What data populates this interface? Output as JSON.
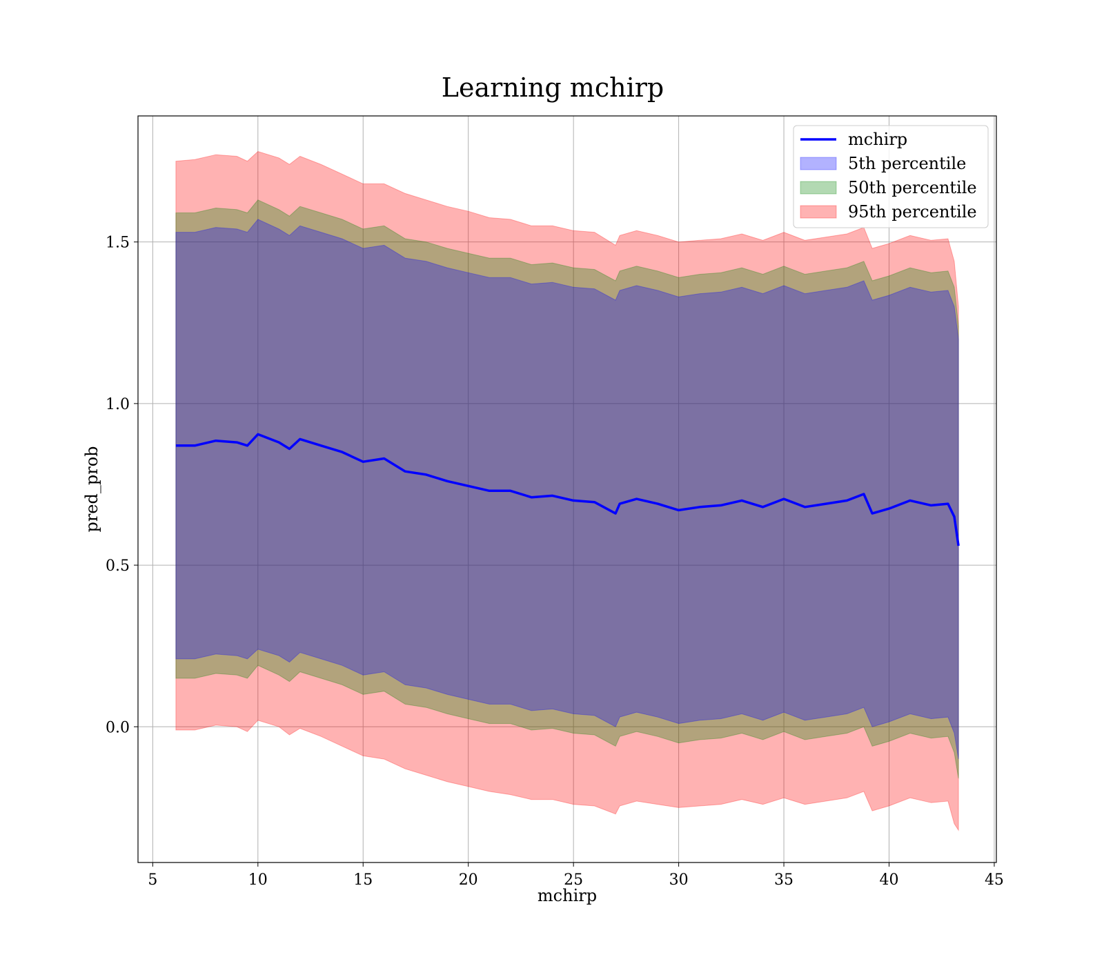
{
  "chart_data": {
    "type": "area",
    "title": "Learning mchirp",
    "xlabel": "mchirp",
    "ylabel": "pred_prob",
    "xlim": [
      4.3,
      45.1
    ],
    "ylim": [
      -0.42,
      1.89
    ],
    "xticks": [
      5,
      10,
      15,
      20,
      25,
      30,
      35,
      40,
      45
    ],
    "yticks": [
      0.0,
      0.5,
      1.0,
      1.5
    ],
    "xtick_labels": [
      "5",
      "10",
      "15",
      "20",
      "25",
      "30",
      "35",
      "40",
      "45"
    ],
    "ytick_labels": [
      "0.0",
      "0.5",
      "1.0",
      "1.5"
    ],
    "grid": true,
    "legend_position": "top-right",
    "legend": [
      {
        "label": "mchirp",
        "kind": "line",
        "color": "#0000ff"
      },
      {
        "label": "5th percentile",
        "kind": "patch",
        "color": "#0000ff"
      },
      {
        "label": "50th percentile",
        "kind": "patch",
        "color": "#008000"
      },
      {
        "label": "95th percentile",
        "kind": "patch",
        "color": "#ff0000"
      }
    ],
    "x": [
      6.1,
      7,
      8,
      9,
      9.5,
      10,
      11,
      11.5,
      12,
      13,
      14,
      15,
      16,
      17,
      18,
      19,
      20,
      21,
      22,
      23,
      24,
      25,
      26,
      27,
      27.2,
      28,
      29,
      30,
      31,
      32,
      33,
      34,
      35,
      36,
      37,
      38,
      38.8,
      39.2,
      40,
      41,
      42,
      42.8,
      43.1,
      43.3
    ],
    "series": [
      {
        "name": "mchirp",
        "kind": "line",
        "color": "#0000ff",
        "values": [
          0.87,
          0.87,
          0.885,
          0.88,
          0.87,
          0.905,
          0.88,
          0.86,
          0.89,
          0.87,
          0.85,
          0.82,
          0.83,
          0.79,
          0.78,
          0.76,
          0.745,
          0.73,
          0.73,
          0.71,
          0.715,
          0.7,
          0.695,
          0.66,
          0.69,
          0.705,
          0.69,
          0.67,
          0.68,
          0.685,
          0.7,
          0.68,
          0.705,
          0.68,
          0.69,
          0.7,
          0.72,
          0.66,
          0.675,
          0.7,
          0.685,
          0.69,
          0.65,
          0.56
        ]
      },
      {
        "name": "5th percentile",
        "kind": "band",
        "color": "#0000ff",
        "upper": [
          1.53,
          1.53,
          1.545,
          1.54,
          1.53,
          1.57,
          1.54,
          1.52,
          1.55,
          1.53,
          1.51,
          1.48,
          1.49,
          1.45,
          1.44,
          1.42,
          1.405,
          1.39,
          1.39,
          1.37,
          1.375,
          1.36,
          1.355,
          1.32,
          1.35,
          1.365,
          1.35,
          1.33,
          1.34,
          1.345,
          1.36,
          1.34,
          1.365,
          1.34,
          1.35,
          1.36,
          1.38,
          1.32,
          1.335,
          1.36,
          1.345,
          1.35,
          1.3,
          1.2
        ],
        "lower": [
          0.21,
          0.21,
          0.225,
          0.22,
          0.21,
          0.24,
          0.22,
          0.2,
          0.23,
          0.21,
          0.19,
          0.16,
          0.17,
          0.13,
          0.12,
          0.1,
          0.085,
          0.07,
          0.07,
          0.05,
          0.055,
          0.04,
          0.035,
          0.0,
          0.03,
          0.045,
          0.03,
          0.01,
          0.02,
          0.025,
          0.04,
          0.02,
          0.045,
          0.02,
          0.03,
          0.04,
          0.06,
          0.0,
          0.015,
          0.04,
          0.025,
          0.03,
          -0.02,
          -0.1
        ]
      },
      {
        "name": "50th percentile",
        "kind": "band",
        "color": "#008000",
        "upper": [
          1.59,
          1.59,
          1.605,
          1.6,
          1.59,
          1.63,
          1.6,
          1.58,
          1.61,
          1.59,
          1.57,
          1.54,
          1.55,
          1.51,
          1.5,
          1.48,
          1.465,
          1.45,
          1.45,
          1.43,
          1.435,
          1.42,
          1.415,
          1.38,
          1.41,
          1.425,
          1.41,
          1.39,
          1.4,
          1.405,
          1.42,
          1.4,
          1.425,
          1.4,
          1.41,
          1.42,
          1.44,
          1.38,
          1.395,
          1.42,
          1.405,
          1.41,
          1.36,
          1.24
        ],
        "lower": [
          0.15,
          0.15,
          0.165,
          0.16,
          0.15,
          0.19,
          0.16,
          0.14,
          0.17,
          0.15,
          0.13,
          0.1,
          0.11,
          0.07,
          0.06,
          0.04,
          0.025,
          0.01,
          0.01,
          -0.01,
          -0.005,
          -0.02,
          -0.025,
          -0.06,
          -0.03,
          -0.015,
          -0.03,
          -0.05,
          -0.04,
          -0.035,
          -0.02,
          -0.04,
          -0.015,
          -0.04,
          -0.03,
          -0.02,
          0.0,
          -0.06,
          -0.045,
          -0.02,
          -0.035,
          -0.03,
          -0.08,
          -0.16
        ]
      },
      {
        "name": "95th percentile",
        "kind": "band",
        "color": "#ff0000",
        "upper": [
          1.75,
          1.755,
          1.77,
          1.765,
          1.75,
          1.78,
          1.76,
          1.74,
          1.765,
          1.74,
          1.71,
          1.68,
          1.68,
          1.65,
          1.63,
          1.61,
          1.595,
          1.575,
          1.57,
          1.55,
          1.55,
          1.535,
          1.53,
          1.49,
          1.52,
          1.535,
          1.52,
          1.5,
          1.505,
          1.51,
          1.525,
          1.505,
          1.53,
          1.505,
          1.515,
          1.525,
          1.545,
          1.48,
          1.495,
          1.52,
          1.505,
          1.51,
          1.44,
          1.3
        ],
        "lower": [
          -0.01,
          -0.01,
          0.005,
          0.0,
          -0.015,
          0.02,
          0.0,
          -0.025,
          -0.005,
          -0.03,
          -0.06,
          -0.09,
          -0.1,
          -0.13,
          -0.15,
          -0.17,
          -0.185,
          -0.2,
          -0.21,
          -0.225,
          -0.225,
          -0.24,
          -0.245,
          -0.27,
          -0.245,
          -0.23,
          -0.24,
          -0.25,
          -0.245,
          -0.24,
          -0.225,
          -0.24,
          -0.22,
          -0.24,
          -0.23,
          -0.22,
          -0.2,
          -0.26,
          -0.245,
          -0.22,
          -0.235,
          -0.23,
          -0.3,
          -0.32
        ]
      }
    ]
  }
}
